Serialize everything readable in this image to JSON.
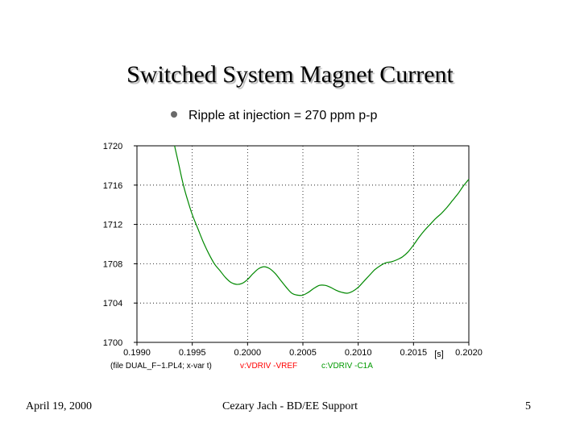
{
  "slide": {
    "title": "Switched System Magnet Current",
    "bullet": "Ripple at injection = 270 ppm p-p",
    "footer_left": "April 19, 2000",
    "footer_center": "Cezary Jach - BD/EE Support",
    "footer_right": "5"
  },
  "chart_data": {
    "type": "line",
    "title": "",
    "xlabel": "[s]",
    "ylabel": "",
    "xlim": [
      0.199,
      0.202
    ],
    "ylim": [
      1700,
      1720
    ],
    "x_ticks": [
      "0.1990",
      "0.1995",
      "0.2000",
      "0.2005",
      "0.2010",
      "0.2015",
      "0.2020"
    ],
    "y_ticks": [
      "1700",
      "1704",
      "1708",
      "1712",
      "1716",
      "1720"
    ],
    "grid": true,
    "legend": {
      "prefix": "(file DUAL_F~1.PL4; x-var t)",
      "entries": [
        {
          "label": "v:VDRIV -VREF",
          "color": "#ff0000"
        },
        {
          "label": "c:VDRIV -C1A",
          "color": "#009900"
        }
      ]
    },
    "series": [
      {
        "name": "c:VDRIV -C1A",
        "color": "#008800",
        "x": [
          0.19934,
          0.19938,
          0.19942,
          0.19946,
          0.1995,
          0.19955,
          0.1996,
          0.19965,
          0.1997,
          0.19975,
          0.1998,
          0.19985,
          0.1999,
          0.19995,
          0.2,
          0.20005,
          0.2001,
          0.20015,
          0.2002,
          0.20025,
          0.2003,
          0.20035,
          0.2004,
          0.20045,
          0.2005,
          0.20055,
          0.2006,
          0.20065,
          0.2007,
          0.20075,
          0.2008,
          0.20085,
          0.2009,
          0.20095,
          0.201,
          0.20105,
          0.2011,
          0.20115,
          0.2012,
          0.20125,
          0.2013,
          0.20135,
          0.2014,
          0.20145,
          0.2015,
          0.20155,
          0.2016,
          0.20165,
          0.2017,
          0.20175,
          0.2018,
          0.20185,
          0.2019,
          0.20195,
          0.202
        ],
        "y": [
          1720.0,
          1718.0,
          1716.0,
          1714.4,
          1713.0,
          1711.6,
          1710.2,
          1709.0,
          1708.0,
          1707.3,
          1706.6,
          1706.1,
          1705.9,
          1706.0,
          1706.4,
          1707.0,
          1707.5,
          1707.7,
          1707.5,
          1707.0,
          1706.3,
          1705.6,
          1705.0,
          1704.8,
          1704.8,
          1705.1,
          1705.5,
          1705.8,
          1705.8,
          1705.6,
          1705.3,
          1705.1,
          1705.0,
          1705.2,
          1705.6,
          1706.2,
          1706.8,
          1707.4,
          1707.8,
          1708.1,
          1708.2,
          1708.4,
          1708.7,
          1709.2,
          1709.9,
          1710.7,
          1711.4,
          1712.0,
          1712.6,
          1713.1,
          1713.7,
          1714.4,
          1715.1,
          1715.9,
          1716.6
        ]
      }
    ]
  }
}
